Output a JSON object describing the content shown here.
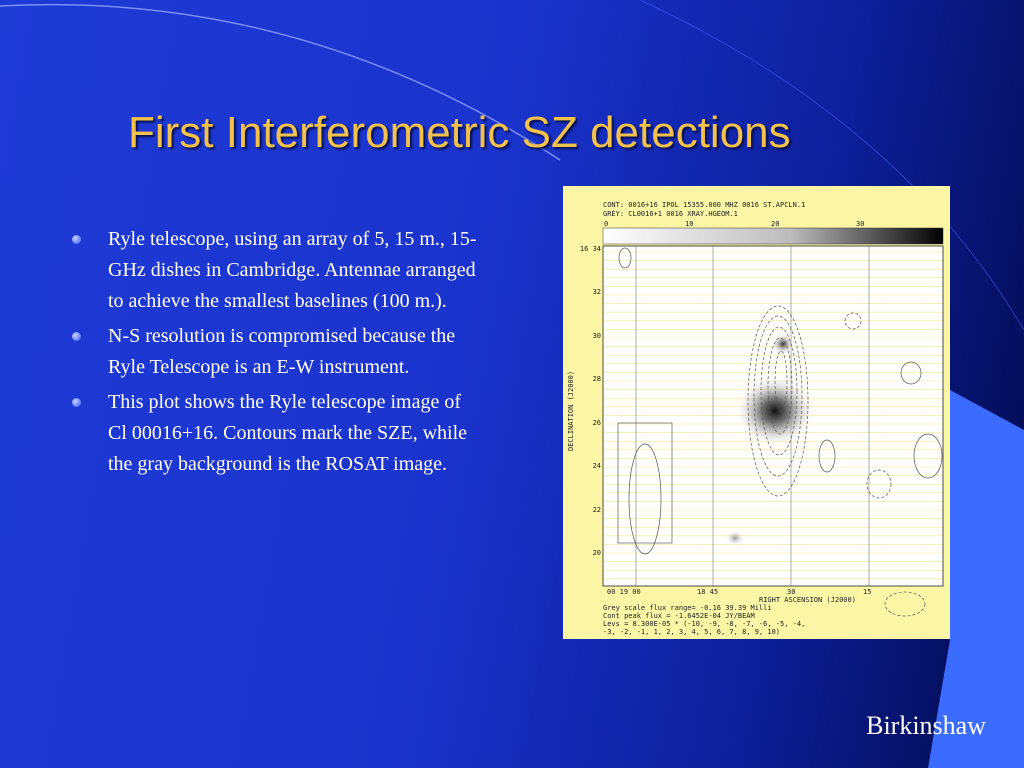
{
  "slide": {
    "title": "First Interferometric SZ detections",
    "bullets": [
      "Ryle telescope, using an array of 5, 15 m., 15-GHz dishes in Cambridge.  Antennae arranged to achieve the smallest baselines (100 m.).",
      "N-S resolution is compromised because the Ryle Telescope is an E-W instrument.",
      "This plot shows the Ryle telescope image of Cl 00016+16.  Contours mark the SZE, while the gray background is the ROSAT image."
    ],
    "author": "Birkinshaw"
  },
  "figure": {
    "header_line1": "CONT: 0016+16  IPOL  15355.000 MHZ  0016 ST.APCLN.1",
    "header_line2": "GREY: CL0016+1  0016 XRAY.HGEOM.1",
    "scale_ticks": [
      "0",
      "10",
      "20",
      "30"
    ],
    "y_ticks": [
      "16 34",
      "32",
      "30",
      "28",
      "26",
      "24",
      "22",
      "20"
    ],
    "x_ticks": [
      "00 19 00",
      "18 45",
      "30",
      "15"
    ],
    "ylabel": "DECLINATION (J2000)",
    "xlabel": "RIGHT ASCENSION (J2000)",
    "footer_lines": [
      "Grey scale flux range= -0.16 39.39 Milli",
      "Cont peak flux = -1.6452E-04 JY/BEAM",
      "Levs = 8.300E-05 * (-10, -9, -8, -7, -6, -5, -4,",
      "-3, -2, -1, 1, 2, 3, 4, 5, 6, 7, 8, 9, 10)"
    ]
  },
  "colors": {
    "title": "#f4c24a",
    "text": "#ffffff",
    "background": "#1a33cc",
    "figure_bg": "#fbf6a6"
  }
}
